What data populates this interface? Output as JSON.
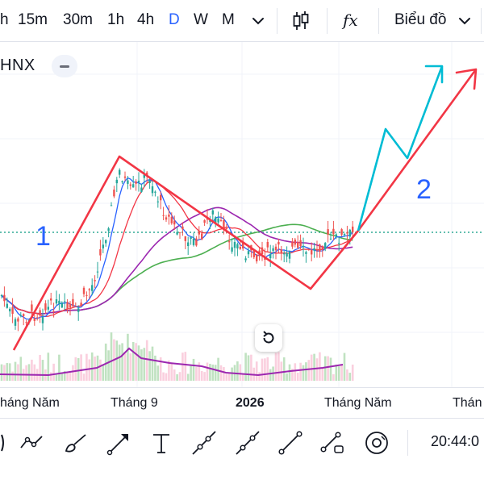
{
  "toolbar": {
    "timeframes": [
      "h",
      "15m",
      "30m",
      "1h",
      "4h",
      "D",
      "W",
      "M"
    ],
    "active_timeframe": "D",
    "chart_type_label": "Biểu đồ",
    "function_label": "fx"
  },
  "chart": {
    "symbol": "HNX",
    "wave_labels": [
      "1",
      "2"
    ],
    "colors": {
      "wave1": "#f23645",
      "wave2": "#00bcd4",
      "wave_label": "#2962ff",
      "ma_red": "#f23645",
      "ma_blue": "#2962ff",
      "ma_green": "#4caf50",
      "ma_purple": "#9c27b0",
      "price_line": "#089981"
    }
  },
  "x_axis": {
    "labels": [
      "háng Năm",
      "Tháng 9",
      "2026",
      "Tháng Năm",
      "Thán"
    ]
  },
  "drawing_tools": {
    "icons": [
      "brush-icon",
      "trend-path-icon",
      "paint-brush-icon",
      "arrow-icon",
      "text-icon",
      "ray-icon",
      "extended-line-icon",
      "line-segment-icon",
      "shape-icon",
      "target-icon"
    ]
  },
  "status": {
    "time": "20:44:0"
  }
}
